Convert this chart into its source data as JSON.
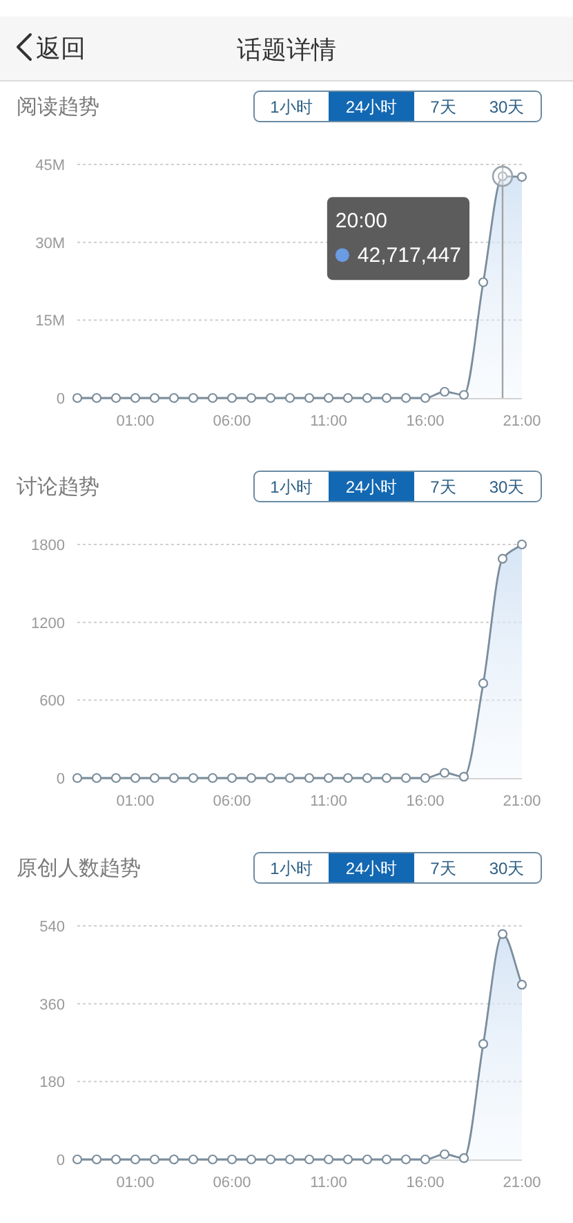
{
  "chart_data": [
    {
      "type": "other",
      "title": "话题详情",
      "annotations": [
        "返回"
      ]
    },
    {
      "type": "area",
      "title": "阅读趋势",
      "annotations": [
        "1小时",
        "24小时",
        "7天",
        "30天",
        "20:00",
        "42,717,447"
      ],
      "x": [
        -2,
        -1,
        0,
        1,
        2,
        3,
        4,
        5,
        6,
        7,
        8,
        9,
        10,
        11,
        12,
        13,
        14,
        15,
        16,
        17,
        18,
        19,
        20,
        21
      ],
      "xlim": [
        -2,
        21
      ],
      "xticks": [
        {
          "value": 1,
          "label": "01:00"
        },
        {
          "value": 6,
          "label": "06:00"
        },
        {
          "value": 11,
          "label": "11:00"
        },
        {
          "value": 16,
          "label": "16:00"
        },
        {
          "value": 21,
          "label": "21:00"
        }
      ],
      "ylim": [
        0,
        45000000
      ],
      "yticks": [
        0,
        {
          "value": 15000000,
          "label": "15M"
        },
        {
          "value": 30000000,
          "label": "30M"
        },
        {
          "value": 45000000,
          "label": "45M"
        }
      ],
      "series": [
        {
          "color": "#7b8d9c",
          "values": [
            0,
            0,
            0,
            0,
            0,
            0,
            0,
            0,
            0,
            0,
            0,
            0,
            0,
            0,
            0,
            0,
            0,
            0,
            0,
            1200000,
            600000,
            22300000,
            42717447,
            42600000
          ]
        }
      ],
      "ref_lines": [
        {
          "axis": "x",
          "value": 20,
          "color": "#a3a3a3"
        }
      ],
      "grid": "y",
      "marker": "circle",
      "line_style": "solid"
    },
    {
      "type": "area",
      "title": "讨论趋势",
      "annotations": [
        "1小时",
        "24小时",
        "7天",
        "30天"
      ],
      "x": [
        -2,
        -1,
        0,
        1,
        2,
        3,
        4,
        5,
        6,
        7,
        8,
        9,
        10,
        11,
        12,
        13,
        14,
        15,
        16,
        17,
        18,
        19,
        20,
        21
      ],
      "xlim": [
        -2,
        21
      ],
      "xticks": [
        {
          "value": 1,
          "label": "01:00"
        },
        {
          "value": 6,
          "label": "06:00"
        },
        {
          "value": 11,
          "label": "11:00"
        },
        {
          "value": 16,
          "label": "16:00"
        },
        {
          "value": 21,
          "label": "21:00"
        }
      ],
      "ylim": [
        0,
        1800
      ],
      "yticks": [
        0,
        600,
        1200,
        1800
      ],
      "series": [
        {
          "color": "#7b8d9c",
          "values": [
            0,
            0,
            0,
            0,
            0,
            0,
            0,
            0,
            0,
            0,
            0,
            0,
            0,
            0,
            0,
            0,
            0,
            0,
            0,
            40,
            10,
            730,
            1690,
            1800
          ]
        }
      ],
      "grid": "y",
      "marker": "circle",
      "line_style": "solid"
    },
    {
      "type": "area",
      "title": "原创人数趋势",
      "annotations": [
        "1小时",
        "24小时",
        "7天",
        "30天"
      ],
      "x": [
        -2,
        -1,
        0,
        1,
        2,
        3,
        4,
        5,
        6,
        7,
        8,
        9,
        10,
        11,
        12,
        13,
        14,
        15,
        16,
        17,
        18,
        19,
        20,
        21
      ],
      "xlim": [
        -2,
        21
      ],
      "xticks": [
        {
          "value": 1,
          "label": "01:00"
        },
        {
          "value": 6,
          "label": "06:00"
        },
        {
          "value": 11,
          "label": "11:00"
        },
        {
          "value": 16,
          "label": "16:00"
        },
        {
          "value": 21,
          "label": "21:00"
        }
      ],
      "ylim": [
        0,
        540
      ],
      "yticks": [
        0,
        180,
        360,
        540
      ],
      "series": [
        {
          "color": "#7b8d9c",
          "values": [
            0,
            0,
            0,
            0,
            0,
            0,
            0,
            0,
            0,
            0,
            0,
            0,
            0,
            0,
            0,
            0,
            0,
            0,
            0,
            12,
            3,
            267,
            521,
            404
          ]
        }
      ],
      "grid": "y",
      "marker": "circle",
      "line_style": "solid"
    }
  ]
}
